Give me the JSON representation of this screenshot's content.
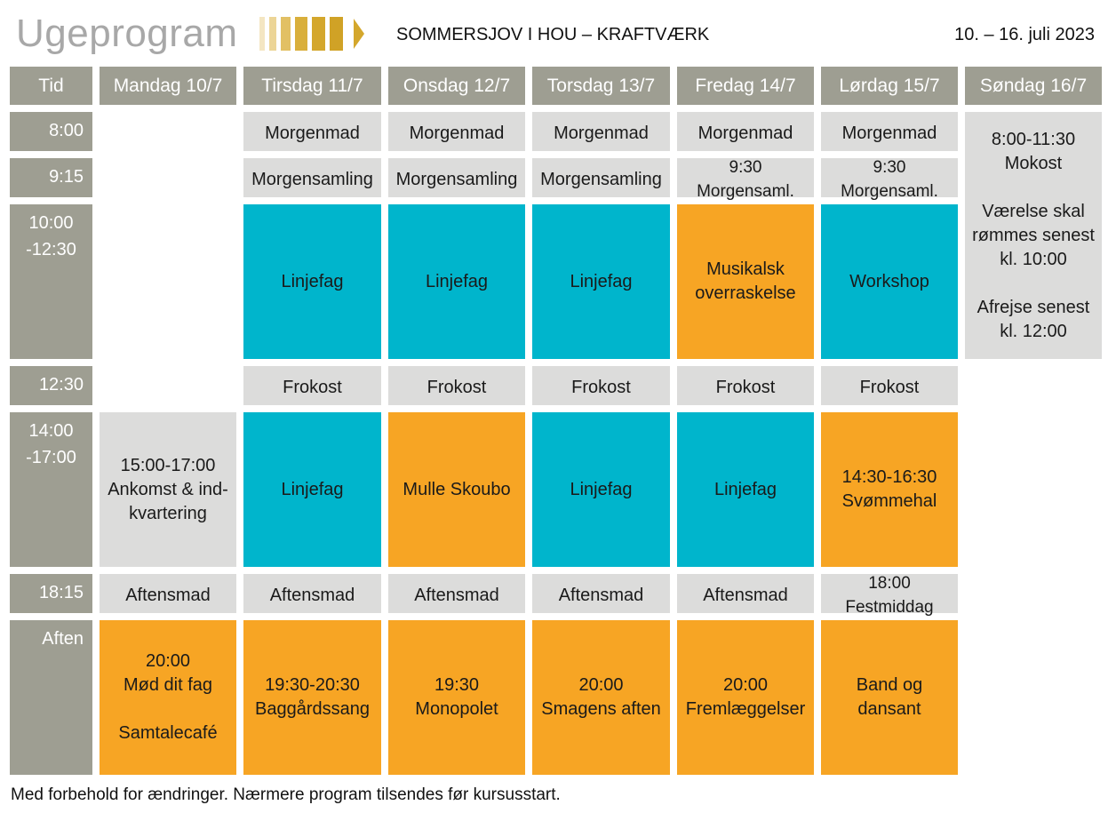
{
  "header": {
    "title": "Ugeprogram",
    "subtitle": "SOMMERSJOV I HOU – KRAFTVÆRK",
    "dates": "10. – 16. juli 2023"
  },
  "colors": {
    "header_gray": "#9e9e92",
    "light_gray": "#dcdcdb",
    "teal": "#00b5cc",
    "orange": "#f7a524",
    "logo_gold": "#d4a72c"
  },
  "columns": [
    "Tid",
    "Mandag 10/7",
    "Tirsdag 11/7",
    "Onsdag 12/7",
    "Torsdag 13/7",
    "Fredag 14/7",
    "Lørdag 15/7",
    "Søndag 16/7"
  ],
  "times": [
    "8:00",
    "9:15",
    "10:00\n-12:30",
    "12:30",
    "14:00\n-17:00",
    "18:15",
    "Aften"
  ],
  "events": {
    "tue_breakfast": "Morgenmad",
    "wed_breakfast": "Morgenmad",
    "thu_breakfast": "Morgenmad",
    "fri_breakfast": "Morgenmad",
    "sat_breakfast": "Morgenmad",
    "sun_morning": "8:00-11:30\nMokost\n\nVærelse skal\nrømmes senest\nkl. 10:00\n\nAfrejse senest\nkl. 12:00",
    "tue_assembly": "Morgensamling",
    "wed_assembly": "Morgensamling",
    "thu_assembly": "Morgensamling",
    "fri_assembly": "9:30 Morgensaml.",
    "sat_assembly": "9:30 Morgensaml.",
    "tue_morning": "Linjefag",
    "wed_morning": "Linjefag",
    "thu_morning": "Linjefag",
    "fri_morning": "Musikalsk\noverraskelse",
    "sat_morning": "Workshop",
    "tue_lunch": "Frokost",
    "wed_lunch": "Frokost",
    "thu_lunch": "Frokost",
    "fri_lunch": "Frokost",
    "sat_lunch": "Frokost",
    "mon_afternoon": "15:00-17:00\nAnkomst & ind-\nkvartering",
    "tue_afternoon": "Linjefag",
    "wed_afternoon": "Mulle Skoubo",
    "thu_afternoon": "Linjefag",
    "fri_afternoon": "Linjefag",
    "sat_afternoon": "14:30-16:30\nSvømmehal",
    "mon_dinner": "Aftensmad",
    "tue_dinner": "Aftensmad",
    "wed_dinner": "Aftensmad",
    "thu_dinner": "Aftensmad",
    "fri_dinner": "Aftensmad",
    "sat_dinner": "18:00 Festmiddag",
    "mon_evening": "20:00\nMød dit fag\n\nSamtalecafé",
    "tue_evening": "19:30-20:30\nBaggårdssang",
    "wed_evening": "19:30\nMonopolet",
    "thu_evening": "20:00\nSmagens aften",
    "fri_evening": "20:00\nFremlæggelser",
    "sat_evening": "Band og\ndansant"
  },
  "footnote": "Med forbehold for ændringer. Nærmere program tilsendes før kursusstart."
}
